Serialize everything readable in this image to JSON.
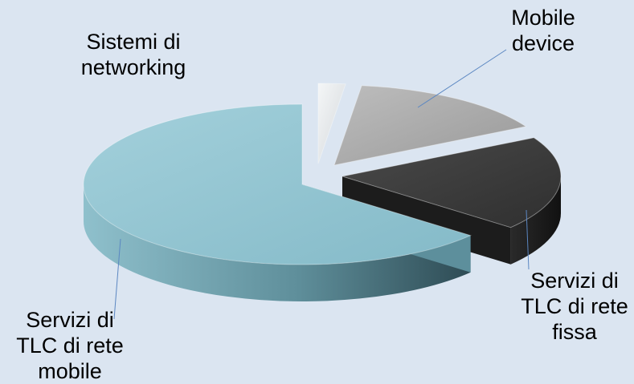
{
  "chart_data": {
    "type": "pie",
    "title": "",
    "slices": [
      {
        "label_lines": [
          "Servizi di",
          "TLC di rete",
          "mobile"
        ],
        "value": 64,
        "color": "#8fc3cf"
      },
      {
        "label_lines": [
          "Sistemi di",
          "networking"
        ],
        "value": 2,
        "color": "#e4e7ea"
      },
      {
        "label_lines": [
          "Mobile",
          "device"
        ],
        "value": 15,
        "color": "#a7a7a7"
      },
      {
        "label_lines": [
          "Servizi di",
          "TLC di rete",
          "fissa"
        ],
        "value": 19,
        "color": "#3b3b3b"
      }
    ],
    "legend": "none",
    "style": "3d-exploded",
    "leader_line_color": "#5b87c2"
  }
}
